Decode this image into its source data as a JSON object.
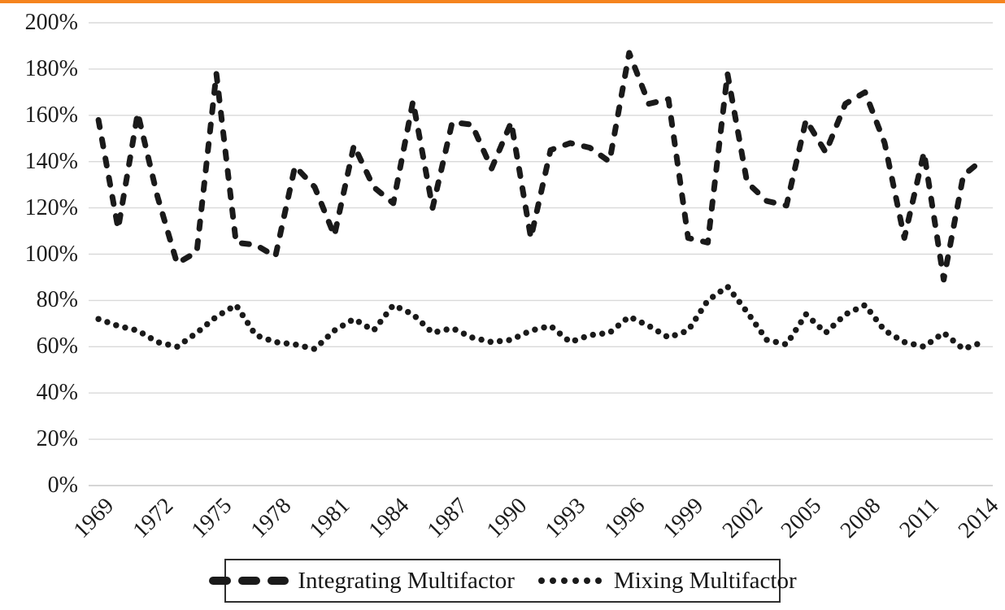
{
  "page": {
    "background": "#FFFFFF",
    "top_border_color": "#F5841F"
  },
  "chart_data": {
    "type": "line",
    "title": "",
    "xlabel": "",
    "ylabel": "",
    "x": [
      1969,
      1970,
      1971,
      1972,
      1973,
      1974,
      1975,
      1976,
      1977,
      1978,
      1979,
      1980,
      1981,
      1982,
      1983,
      1984,
      1985,
      1986,
      1987,
      1988,
      1989,
      1990,
      1991,
      1992,
      1993,
      1994,
      1995,
      1996,
      1997,
      1998,
      1999,
      2000,
      2001,
      2002,
      2003,
      2004,
      2005,
      2006,
      2007,
      2008,
      2009,
      2010,
      2011,
      2012,
      2013,
      2014
    ],
    "series": [
      {
        "name": "Integrating Multifactor",
        "style": "dashed",
        "color": "#1A1A1A",
        "values": [
          158,
          111,
          161,
          125,
          96,
          101,
          178,
          105,
          104,
          99,
          138,
          129,
          108,
          147,
          129,
          122,
          166,
          120,
          157,
          156,
          137,
          157,
          107,
          145,
          148,
          146,
          140,
          187,
          165,
          167,
          107,
          105,
          178,
          131,
          123,
          121,
          158,
          144,
          165,
          170,
          148,
          107,
          144,
          89,
          134,
          141
        ]
      },
      {
        "name": "Mixing Multifactor",
        "style": "dotted",
        "color": "#1A1A1A",
        "values": [
          72,
          69,
          67,
          62,
          60,
          66,
          73,
          78,
          65,
          62,
          61,
          59,
          67,
          72,
          67,
          78,
          74,
          66,
          68,
          64,
          62,
          63,
          67,
          69,
          62,
          65,
          66,
          73,
          69,
          64,
          67,
          80,
          86,
          75,
          63,
          61,
          74,
          66,
          74,
          78,
          67,
          62,
          60,
          66,
          59,
          62
        ]
      }
    ],
    "ylim": [
      0,
      200
    ],
    "ytick_step": 20,
    "ytick_labels": [
      "0%",
      "20%",
      "40%",
      "60%",
      "80%",
      "100%",
      "120%",
      "140%",
      "160%",
      "180%",
      "200%"
    ],
    "xtick_labels": [
      "1969",
      "1972",
      "1975",
      "1978",
      "1981",
      "1984",
      "1987",
      "1990",
      "1993",
      "1996",
      "1999",
      "2002",
      "2005",
      "2008",
      "2011",
      "2014"
    ],
    "grid": "horizontal",
    "gridline_color": "#D9D9D9",
    "axisline_color": "#C9C9C9",
    "legend_position": "bottom",
    "legend_border": true
  }
}
